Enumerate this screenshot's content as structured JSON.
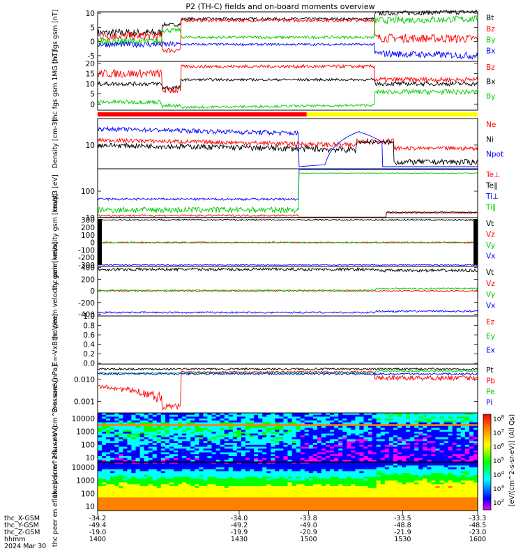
{
  "title": "P2 (TH-C) fields and on-board moments overview",
  "status_bar_colors": [
    "#ff0000",
    "#ffff00"
  ],
  "colorbar": {
    "label": "[eV/(cm^2-s-sr-eV)] (All Qs)",
    "ticks": [
      "10^8",
      "10^7",
      "10^6",
      "10^5",
      "10^4",
      "10^3",
      "10^2"
    ]
  },
  "ephemeris": {
    "rows": [
      {
        "label": "thc_X-GSM",
        "values": [
          "-34.2",
          "-34.0",
          "-33.8",
          "-33.5",
          "-33.3"
        ]
      },
      {
        "label": "thc_Y-GSM",
        "values": [
          "-49.4",
          "-49.2",
          "-49.0",
          "-48.8",
          "-48.5"
        ]
      },
      {
        "label": "thc_Z-GSM",
        "values": [
          "-19.0",
          "-19.9",
          "-20.9",
          "-21.9",
          "-23.0"
        ]
      },
      {
        "label": "hhmm",
        "values": [
          "1400",
          "1430",
          "1500",
          "1530",
          "1600"
        ]
      }
    ],
    "date": "2024 Mar 30"
  },
  "chart_data": [
    {
      "type": "line",
      "ylabel": "thc fgs gsm [nT]",
      "yticks": [
        10,
        5,
        0,
        -5
      ],
      "ylim": [
        -7,
        10.5
      ],
      "legend": [
        {
          "name": "Bt",
          "color": "#000000"
        },
        {
          "name": "Bz",
          "color": "#ff0000"
        },
        {
          "name": "By",
          "color": "#00cc00"
        },
        {
          "name": "Bx",
          "color": "#0000ff"
        }
      ]
    },
    {
      "type": "line",
      "ylabel": "thc fgs gsm 1MG [nT]",
      "yticks": [
        20,
        15,
        10,
        5,
        0
      ],
      "ylim": [
        -3,
        21
      ],
      "legend": [
        {
          "name": "Bz",
          "color": "#ff0000"
        },
        {
          "name": "Bx",
          "color": "#000000"
        },
        {
          "name": "By",
          "color": "#00cc00"
        }
      ]
    },
    {
      "type": "line",
      "ylabel": "Density [cm-3]",
      "yticks": [
        10
      ],
      "scale": "log",
      "legend": [
        {
          "name": "Ne",
          "color": "#ff0000"
        },
        {
          "name": "Ni",
          "color": "#000000"
        },
        {
          "name": "Npot",
          "color": "#0000ff"
        }
      ]
    },
    {
      "type": "line",
      "ylabel": "moqt3 [eV]",
      "yticks": [
        100,
        10
      ],
      "scale": "log",
      "legend": [
        {
          "name": "Te⊥",
          "color": "#ff0000"
        },
        {
          "name": "Te∥",
          "color": "#000000"
        },
        {
          "name": "Ti⊥",
          "color": "#0000ff"
        },
        {
          "name": "Ti∥",
          "color": "#00cc00"
        }
      ]
    },
    {
      "type": "line",
      "ylabel": "thc peim velocity gsm [km/s]",
      "yticks": [
        300,
        200,
        100,
        0,
        -100,
        -200,
        -300
      ],
      "ylim": [
        -320,
        330
      ],
      "legend": [
        {
          "name": "Vt",
          "color": "#000000"
        },
        {
          "name": "Vz",
          "color": "#ff0000"
        },
        {
          "name": "Vy",
          "color": "#00cc00"
        },
        {
          "name": "Vx",
          "color": "#0000ff"
        }
      ]
    },
    {
      "type": "line",
      "ylabel": "thc peem velocity gsm [km/s]",
      "yticks": [
        400,
        200,
        0,
        -200,
        -400
      ],
      "ylim": [
        -430,
        420
      ],
      "legend": [
        {
          "name": "Vt",
          "color": "#000000"
        },
        {
          "name": "Vz",
          "color": "#ff0000"
        },
        {
          "name": "Vy",
          "color": "#00cc00"
        },
        {
          "name": "Vx",
          "color": "#0000ff"
        }
      ]
    },
    {
      "type": "line",
      "ylabel": "E=-VxB [mV/m]",
      "yticks": [
        1.0,
        0.8,
        0.6,
        0.4,
        0.2,
        0.0
      ],
      "ylim": [
        -0.02,
        1.0
      ],
      "legend": [
        {
          "name": "Ez",
          "color": "#ff0000"
        },
        {
          "name": "Ey",
          "color": "#00cc00"
        },
        {
          "name": "Ex",
          "color": "#0000ff"
        }
      ]
    },
    {
      "type": "line",
      "ylabel": "Pressure [nPa]",
      "yticks": [
        0.01,
        0.001
      ],
      "scale": "log",
      "legend": [
        {
          "name": "Pt",
          "color": "#000000"
        },
        {
          "name": "Pb",
          "color": "#ff0000"
        },
        {
          "name": "Pe",
          "color": "#00cc00"
        },
        {
          "name": "Pi",
          "color": "#0000ff"
        }
      ]
    },
    {
      "type": "heatmap",
      "ylabel": "thc peir en eflux eV (cm^2-s- sr-eV)",
      "yticks": [
        10000,
        1000,
        100,
        10
      ]
    },
    {
      "type": "heatmap",
      "ylabel": "thc peer en eflux eV (cm^2-s- sr-eV)",
      "yticks": [
        10000,
        1000,
        100,
        10
      ]
    }
  ]
}
